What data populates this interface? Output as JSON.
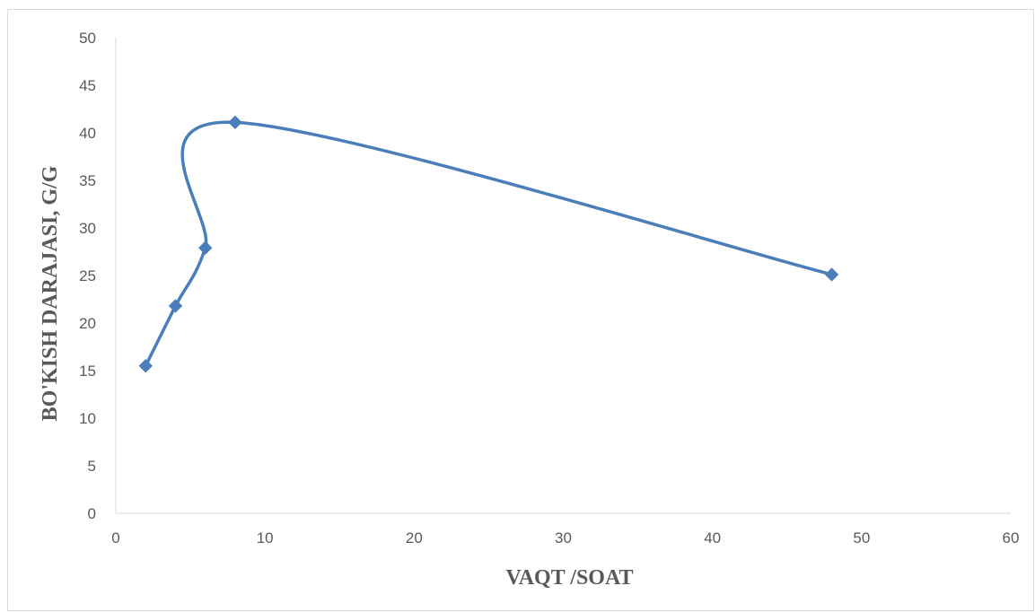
{
  "chart_data": {
    "type": "scatter",
    "title": "",
    "xlabel": "VAQT /SOAT",
    "ylabel": "BO'KISH DARAJASI, G/G",
    "xlim": [
      0,
      60
    ],
    "ylim": [
      0,
      50
    ],
    "x_ticks": [
      0,
      10,
      20,
      30,
      40,
      50,
      60
    ],
    "y_ticks": [
      0,
      5,
      10,
      15,
      20,
      25,
      30,
      35,
      40,
      45,
      50
    ],
    "grid": false,
    "legend": "none",
    "smooth": true,
    "marker": "diamond",
    "color": "#4a7ebb",
    "series": [
      {
        "x": [
          2,
          4,
          6,
          8,
          48
        ],
        "y": [
          15.5,
          21.8,
          27.9,
          41.1,
          25.1
        ]
      }
    ]
  }
}
